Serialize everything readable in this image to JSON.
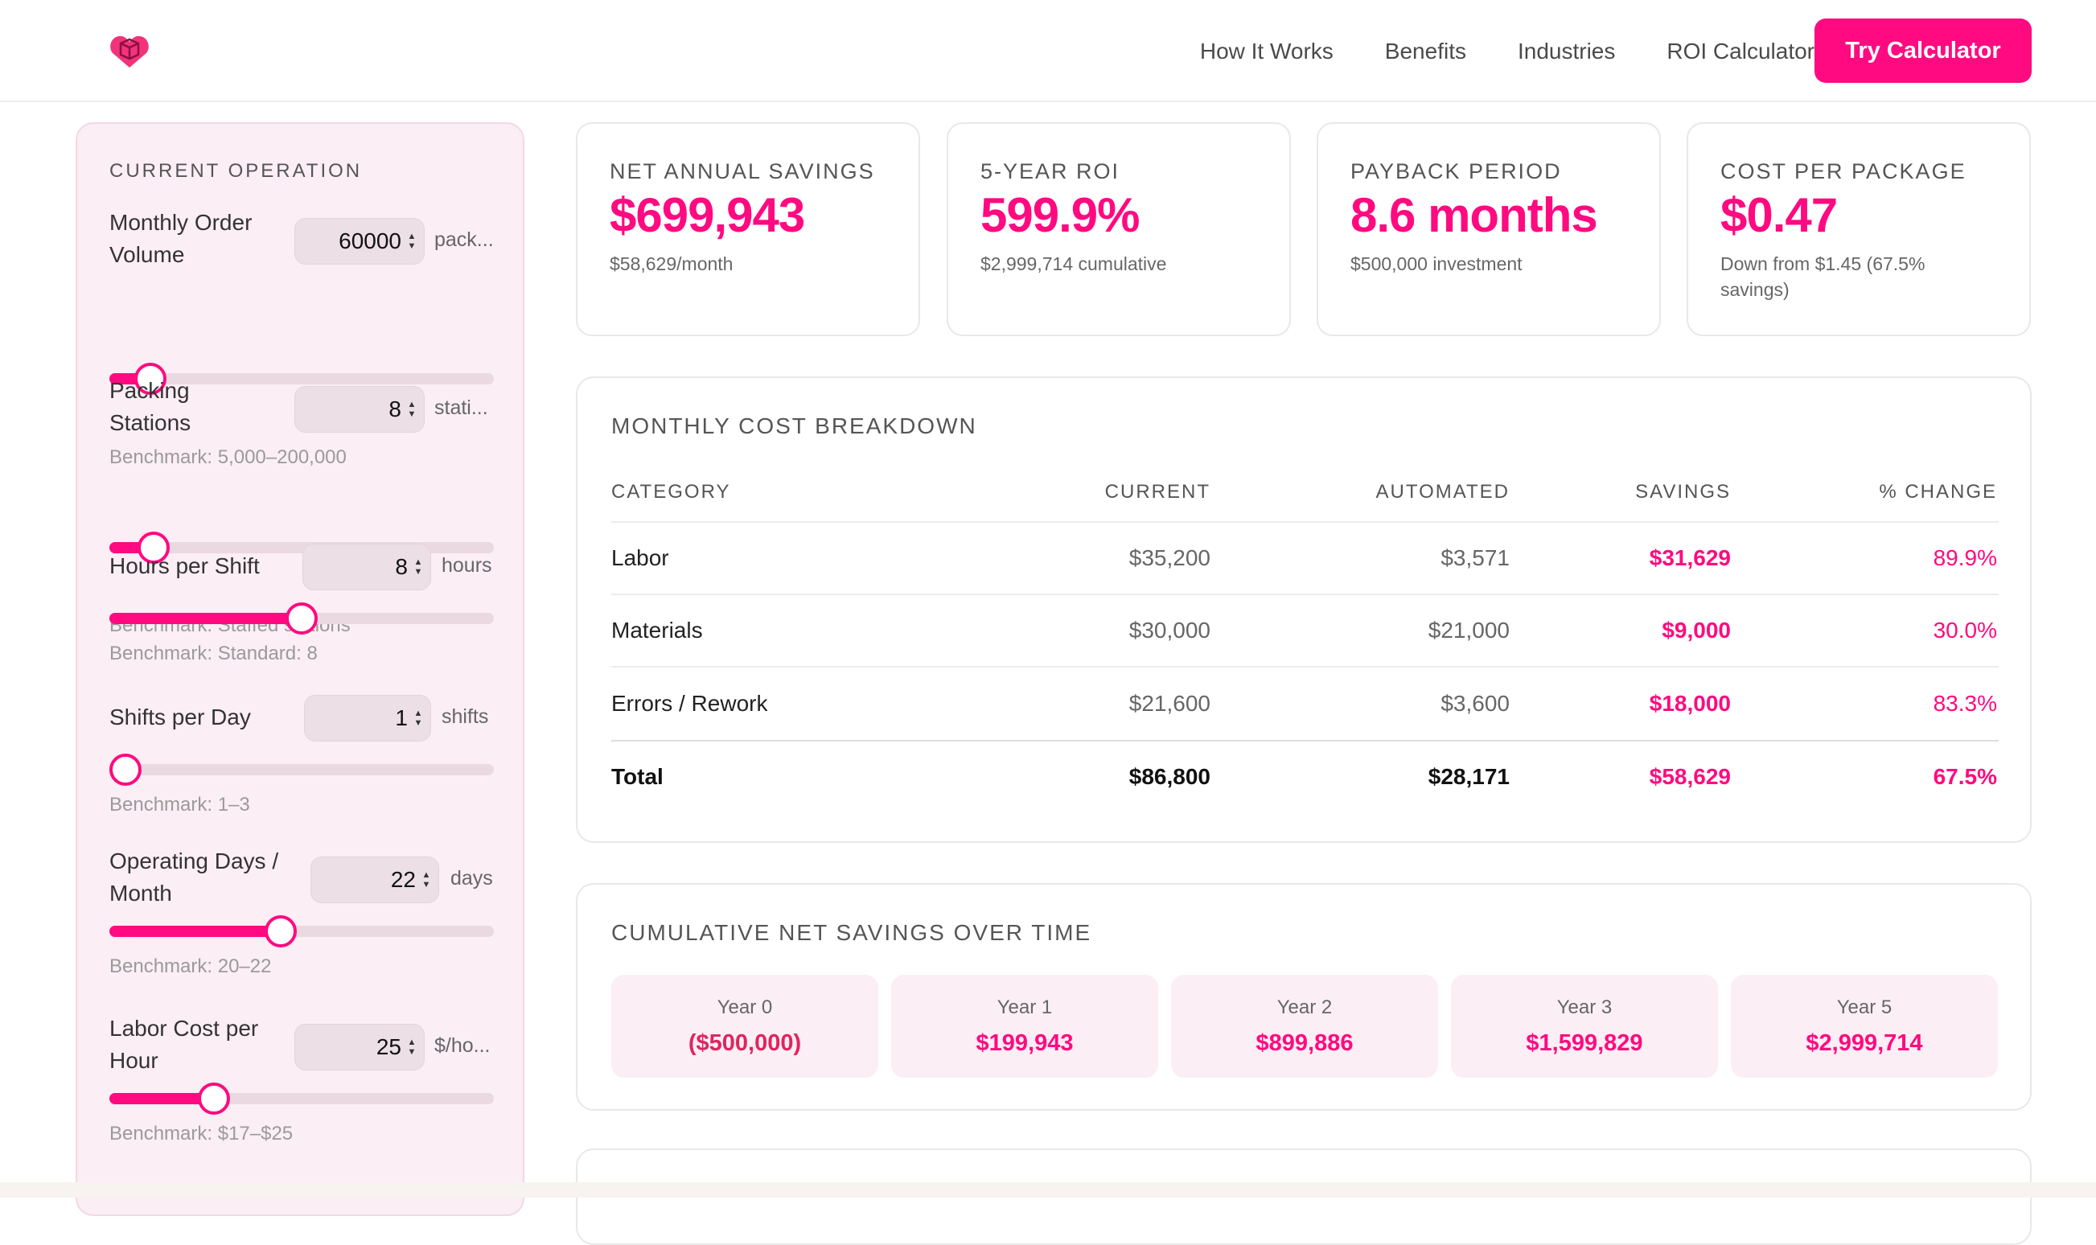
{
  "nav": {
    "links": [
      "How It Works",
      "Benefits",
      "Industries",
      "ROI Calculator"
    ],
    "cta": "Try Calculator",
    "brand_color": "#ff0a80",
    "logo_icon": "package-heart-logo"
  },
  "sidebar": {
    "title": "CURRENT OPERATION",
    "fields": [
      {
        "label": "Monthly Order Volume",
        "value": "60000",
        "unit": "pack...",
        "benchmark": "Benchmark: 5,000–200,000",
        "slider_fraction": 0.07
      },
      {
        "label": "Packing Stations",
        "value": "8",
        "unit": "stati...",
        "benchmark": "Benchmark: Staffed stations",
        "slider_fraction": 0.08
      },
      {
        "label": "Hours per Shift",
        "value": "8",
        "unit": "hours",
        "benchmark": "Benchmark: Standard: 8",
        "slider_fraction": 0.5
      },
      {
        "label": "Shifts per Day",
        "value": "1",
        "unit": "shifts",
        "benchmark": "Benchmark: 1–3",
        "slider_fraction": 0.0
      },
      {
        "label": "Operating Days / Month",
        "value": "22",
        "unit": "days",
        "benchmark": "Benchmark: 20–22",
        "slider_fraction": 0.44
      },
      {
        "label": "Labor Cost per Hour",
        "value": "25",
        "unit": "$/ho...",
        "benchmark": "Benchmark: $17–$25",
        "slider_fraction": 0.25
      }
    ]
  },
  "kpis": [
    {
      "label": "NET ANNUAL SAVINGS",
      "value": "$699,943",
      "sub": "$58,629/month"
    },
    {
      "label": "5-YEAR ROI",
      "value": "599.9%",
      "sub": "$2,999,714 cumulative"
    },
    {
      "label": "PAYBACK PERIOD",
      "value": "8.6 months",
      "sub": "$500,000 investment"
    },
    {
      "label": "COST PER PACKAGE",
      "value": "$0.47",
      "sub": "Down from $1.45 (67.5% savings)"
    }
  ],
  "breakdown": {
    "title": "MONTHLY COST BREAKDOWN",
    "columns": [
      "CATEGORY",
      "CURRENT",
      "AUTOMATED",
      "SAVINGS",
      "% CHANGE"
    ],
    "rows": [
      [
        "Labor",
        "$35,200",
        "$3,571",
        "$31,629",
        "89.9%"
      ],
      [
        "Materials",
        "$30,000",
        "$21,000",
        "$9,000",
        "30.0%"
      ],
      [
        "Errors / Rework",
        "$21,600",
        "$3,600",
        "$18,000",
        "83.3%"
      ]
    ],
    "total": [
      "Total",
      "$86,800",
      "$28,171",
      "$58,629",
      "67.5%"
    ]
  },
  "cumulative": {
    "title": "CUMULATIVE NET SAVINGS OVER TIME",
    "years": [
      {
        "label": "Year 0",
        "value": "($500,000)"
      },
      {
        "label": "Year 1",
        "value": "$199,943"
      },
      {
        "label": "Year 2",
        "value": "$899,886"
      },
      {
        "label": "Year 3",
        "value": "$1,599,829"
      },
      {
        "label": "Year 5",
        "value": "$2,999,714"
      }
    ]
  }
}
